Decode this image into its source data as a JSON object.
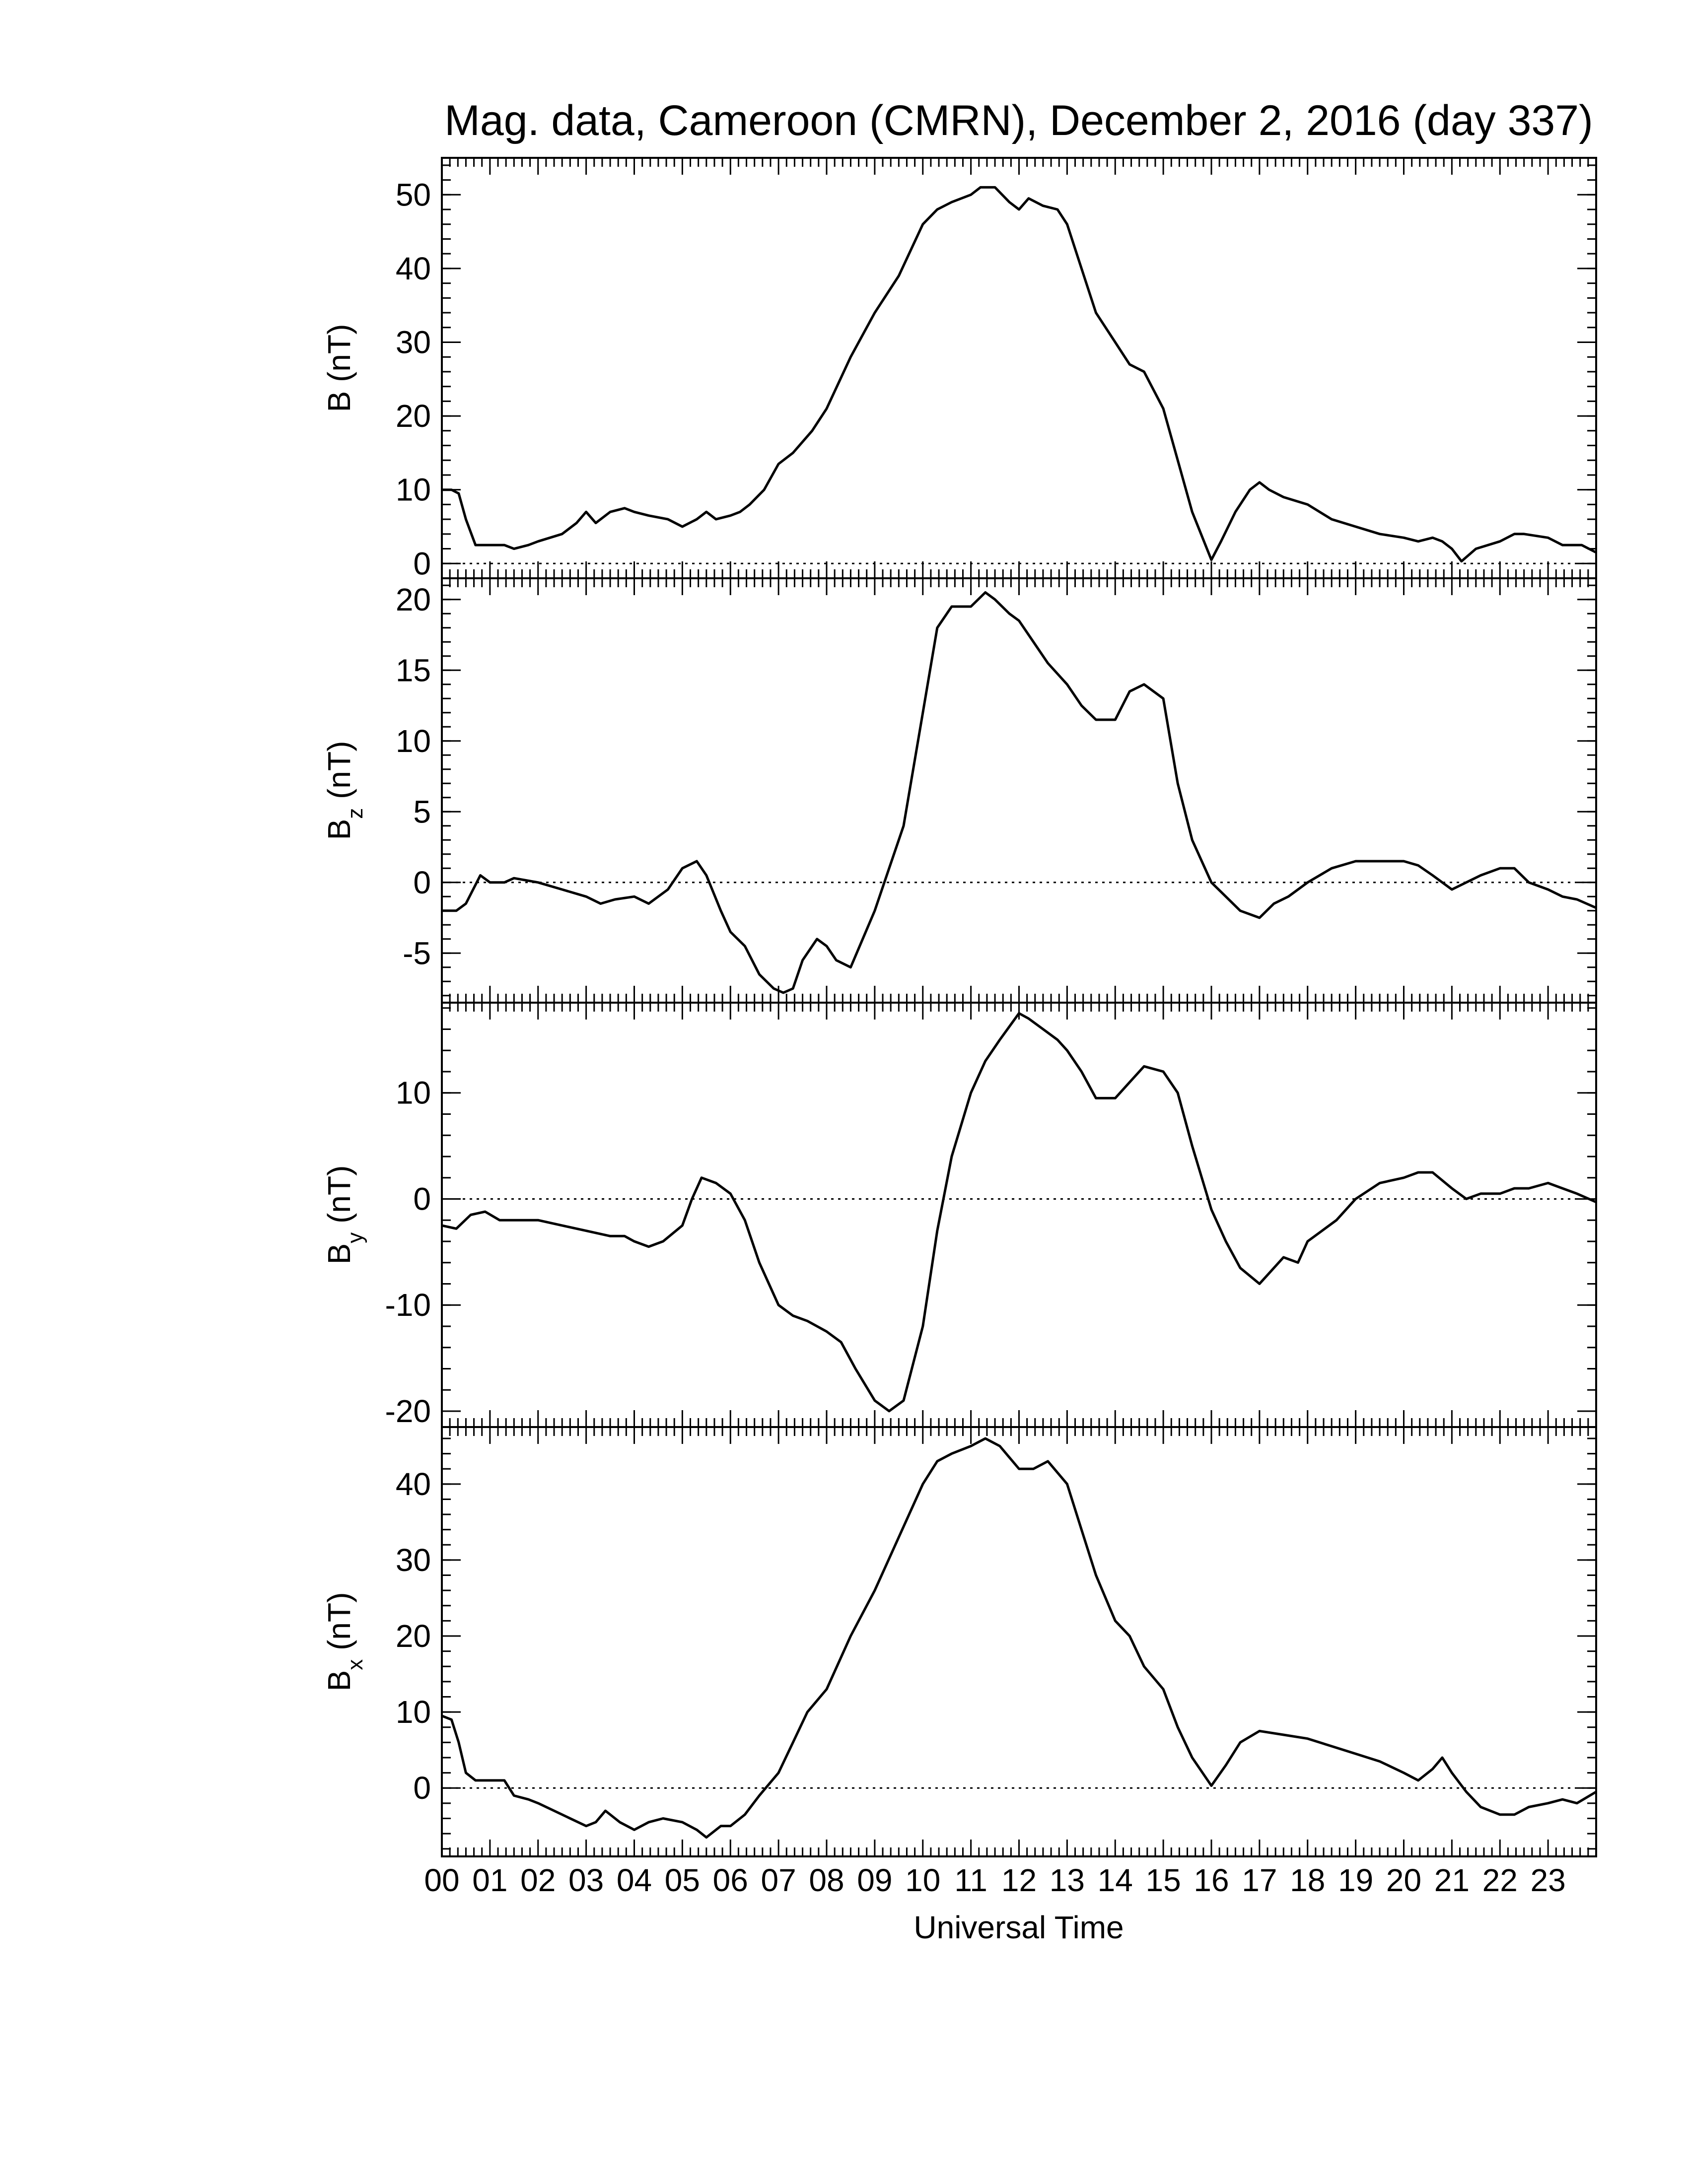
{
  "chart_data": {
    "type": "line",
    "title": "Mag. data, Cameroon (CMRN), December 2, 2016 (day 337)",
    "xlabel": "Universal Time",
    "x_tick_labels": [
      "00",
      "01",
      "02",
      "03",
      "04",
      "05",
      "06",
      "07",
      "08",
      "09",
      "10",
      "11",
      "12",
      "13",
      "14",
      "15",
      "16",
      "17",
      "18",
      "19",
      "20",
      "21",
      "22",
      "23"
    ],
    "xlim": [
      0,
      24
    ],
    "line_color": "#000000",
    "panels": [
      {
        "id": "B",
        "ylabel": {
          "base": "B",
          "sub": "",
          "unit": " (nT)"
        },
        "ylim": [
          -2,
          55
        ],
        "yticks": [
          0,
          10,
          20,
          30,
          40,
          50
        ],
        "ytick_labels": [
          "0",
          "10",
          "20",
          "30",
          "40",
          "50"
        ],
        "zero_line": true,
        "series": {
          "x": [
            0,
            0.2,
            0.35,
            0.5,
            0.7,
            1.0,
            1.3,
            1.5,
            1.8,
            2.0,
            2.5,
            2.8,
            3.0,
            3.2,
            3.5,
            3.8,
            4.0,
            4.3,
            4.7,
            5.0,
            5.3,
            5.5,
            5.7,
            6.0,
            6.2,
            6.4,
            6.7,
            7.0,
            7.3,
            7.7,
            8.0,
            8.5,
            9.0,
            9.5,
            10.0,
            10.3,
            10.6,
            11.0,
            11.2,
            11.5,
            11.8,
            12.0,
            12.2,
            12.5,
            12.8,
            13.0,
            13.3,
            13.6,
            14.0,
            14.3,
            14.6,
            15.0,
            15.3,
            15.6,
            16.0,
            16.2,
            16.5,
            16.8,
            17.0,
            17.2,
            17.5,
            18.0,
            18.5,
            19.0,
            19.5,
            20.0,
            20.3,
            20.6,
            20.8,
            21.0,
            21.2,
            21.5,
            22.0,
            22.3,
            22.5,
            23.0,
            23.3,
            23.7,
            24.0
          ],
          "y": [
            10,
            10,
            9.5,
            6,
            2.5,
            2.5,
            2.5,
            2.0,
            2.5,
            3,
            4,
            5.5,
            7,
            5.5,
            7,
            7.5,
            7,
            6.5,
            6,
            5,
            6,
            7,
            6,
            6.5,
            7,
            8,
            10,
            13.5,
            15,
            18,
            21,
            28,
            34,
            39,
            46,
            48,
            49,
            50,
            51,
            51,
            49,
            48,
            49.5,
            48.5,
            48,
            46,
            40,
            34,
            30,
            27,
            26,
            21,
            14,
            7,
            0.5,
            3,
            7,
            10,
            11,
            10,
            9,
            8,
            6,
            5,
            4,
            3.5,
            3,
            3.5,
            3,
            2,
            0.3,
            2,
            3,
            4,
            4,
            3.5,
            2.5,
            2.5,
            1.5
          ]
        }
      },
      {
        "id": "Bz",
        "ylabel": {
          "base": "B",
          "sub": "z",
          "unit": " (nT)"
        },
        "ylim": [
          -8.5,
          21.5
        ],
        "yticks": [
          -5,
          0,
          5,
          10,
          15,
          20
        ],
        "ytick_labels": [
          "-5",
          "0",
          "5",
          "10",
          "15",
          "20"
        ],
        "zero_line": true,
        "series": {
          "x": [
            0,
            0.3,
            0.5,
            0.8,
            1.0,
            1.3,
            1.5,
            2.0,
            2.5,
            3.0,
            3.3,
            3.6,
            4.0,
            4.3,
            4.7,
            5.0,
            5.3,
            5.5,
            5.8,
            6.0,
            6.3,
            6.6,
            6.9,
            7.1,
            7.3,
            7.5,
            7.8,
            8.0,
            8.2,
            8.5,
            9.0,
            9.3,
            9.6,
            10.0,
            10.3,
            10.6,
            11.0,
            11.3,
            11.5,
            11.8,
            12.0,
            12.3,
            12.6,
            13.0,
            13.3,
            13.6,
            14.0,
            14.3,
            14.6,
            15.0,
            15.3,
            15.6,
            16.0,
            16.3,
            16.6,
            17.0,
            17.3,
            17.6,
            18.0,
            18.5,
            19.0,
            19.5,
            20.0,
            20.3,
            20.6,
            21.0,
            21.3,
            21.6,
            22.0,
            22.3,
            22.6,
            23.0,
            23.3,
            23.6,
            24.0
          ],
          "y": [
            -2,
            -2,
            -1.5,
            0.5,
            0,
            0,
            0.3,
            0,
            -0.5,
            -1,
            -1.5,
            -1.2,
            -1,
            -1.5,
            -0.5,
            1,
            1.5,
            0.5,
            -2,
            -3.5,
            -4.5,
            -6.5,
            -7.5,
            -7.8,
            -7.5,
            -5.5,
            -4,
            -4.5,
            -5.5,
            -6,
            -2,
            1,
            4,
            12,
            18,
            19.5,
            19.5,
            20.5,
            20,
            19,
            18.5,
            17,
            15.5,
            14,
            12.5,
            11.5,
            11.5,
            13.5,
            14,
            13,
            7,
            3,
            0,
            -1,
            -2,
            -2.5,
            -1.5,
            -1,
            0,
            1,
            1.5,
            1.5,
            1.5,
            1.2,
            0.5,
            -0.5,
            0,
            0.5,
            1,
            1,
            0,
            -0.5,
            -1,
            -1.2,
            -1.8
          ]
        }
      },
      {
        "id": "By",
        "ylabel": {
          "base": "B",
          "sub": "y",
          "unit": " (nT)"
        },
        "ylim": [
          -21.5,
          18.5
        ],
        "yticks": [
          -20,
          -10,
          0,
          10
        ],
        "ytick_labels": [
          "-20",
          "-10",
          "0",
          "10"
        ],
        "zero_line": true,
        "series": {
          "x": [
            0,
            0.3,
            0.6,
            0.9,
            1.2,
            1.5,
            2.0,
            2.5,
            3.0,
            3.5,
            3.8,
            4.0,
            4.3,
            4.6,
            5.0,
            5.2,
            5.4,
            5.7,
            6.0,
            6.3,
            6.6,
            7.0,
            7.3,
            7.6,
            8.0,
            8.3,
            8.6,
            9.0,
            9.3,
            9.6,
            10.0,
            10.3,
            10.6,
            11.0,
            11.3,
            11.6,
            12.0,
            12.2,
            12.5,
            12.8,
            13.0,
            13.3,
            13.6,
            14.0,
            14.3,
            14.6,
            15.0,
            15.3,
            15.6,
            16.0,
            16.3,
            16.6,
            17.0,
            17.2,
            17.5,
            17.8,
            18.0,
            18.3,
            18.6,
            19.0,
            19.5,
            20.0,
            20.3,
            20.6,
            21.0,
            21.3,
            21.6,
            22.0,
            22.3,
            22.6,
            23.0,
            23.3,
            23.6,
            24.0
          ],
          "y": [
            -2.5,
            -2.8,
            -1.5,
            -1.2,
            -2,
            -2,
            -2,
            -2.5,
            -3,
            -3.5,
            -3.5,
            -4,
            -4.5,
            -4,
            -2.5,
            0,
            2,
            1.5,
            0.5,
            -2,
            -6,
            -10,
            -11,
            -11.5,
            -12.5,
            -13.5,
            -16,
            -19,
            -20,
            -19,
            -12,
            -3,
            4,
            10,
            13,
            15,
            17.5,
            17,
            16,
            15,
            14,
            12,
            9.5,
            9.5,
            11,
            12.5,
            12,
            10,
            5,
            -1,
            -4,
            -6.5,
            -8,
            -7,
            -5.5,
            -6,
            -4,
            -3,
            -2,
            0,
            1.5,
            2,
            2.5,
            2.5,
            1,
            0,
            0.5,
            0.5,
            1,
            1,
            1.5,
            1,
            0.5,
            -0.3
          ]
        }
      },
      {
        "id": "Bx",
        "ylabel": {
          "base": "B",
          "sub": "x",
          "unit": " (nT)"
        },
        "ylim": [
          -9,
          47.5
        ],
        "yticks": [
          0,
          10,
          20,
          30,
          40
        ],
        "ytick_labels": [
          "0",
          "10",
          "20",
          "30",
          "40"
        ],
        "zero_line": true,
        "series": {
          "x": [
            0,
            0.2,
            0.35,
            0.5,
            0.7,
            1.0,
            1.3,
            1.5,
            1.8,
            2.0,
            2.5,
            3.0,
            3.2,
            3.4,
            3.7,
            4.0,
            4.3,
            4.6,
            5.0,
            5.3,
            5.5,
            5.8,
            6.0,
            6.3,
            6.6,
            7.0,
            7.3,
            7.6,
            8.0,
            8.5,
            9.0,
            9.5,
            10.0,
            10.3,
            10.6,
            11.0,
            11.3,
            11.6,
            12.0,
            12.3,
            12.6,
            13.0,
            13.3,
            13.6,
            14.0,
            14.3,
            14.6,
            15.0,
            15.3,
            15.6,
            16.0,
            16.3,
            16.6,
            17.0,
            17.5,
            18.0,
            18.5,
            19.0,
            19.5,
            20.0,
            20.3,
            20.6,
            20.8,
            21.0,
            21.3,
            21.6,
            22.0,
            22.3,
            22.6,
            23.0,
            23.3,
            23.6,
            24.0
          ],
          "y": [
            9.5,
            9,
            6,
            2,
            1,
            1,
            1,
            -1,
            -1.5,
            -2,
            -3.5,
            -5,
            -4.5,
            -3,
            -4.5,
            -5.5,
            -4.5,
            -4,
            -4.5,
            -5.5,
            -6.5,
            -5,
            -5,
            -3.5,
            -1,
            2,
            6,
            10,
            13,
            20,
            26,
            33,
            40,
            43,
            44,
            45,
            46,
            45,
            42,
            42,
            43,
            40,
            34,
            28,
            22,
            20,
            16,
            13,
            8,
            4,
            0.3,
            3,
            6,
            7.5,
            7,
            6.5,
            5.5,
            4.5,
            3.5,
            2,
            1,
            2.5,
            4,
            2,
            -0.5,
            -2.5,
            -3.5,
            -3.5,
            -2.5,
            -2,
            -1.5,
            -2,
            -0.5
          ]
        }
      }
    ]
  }
}
